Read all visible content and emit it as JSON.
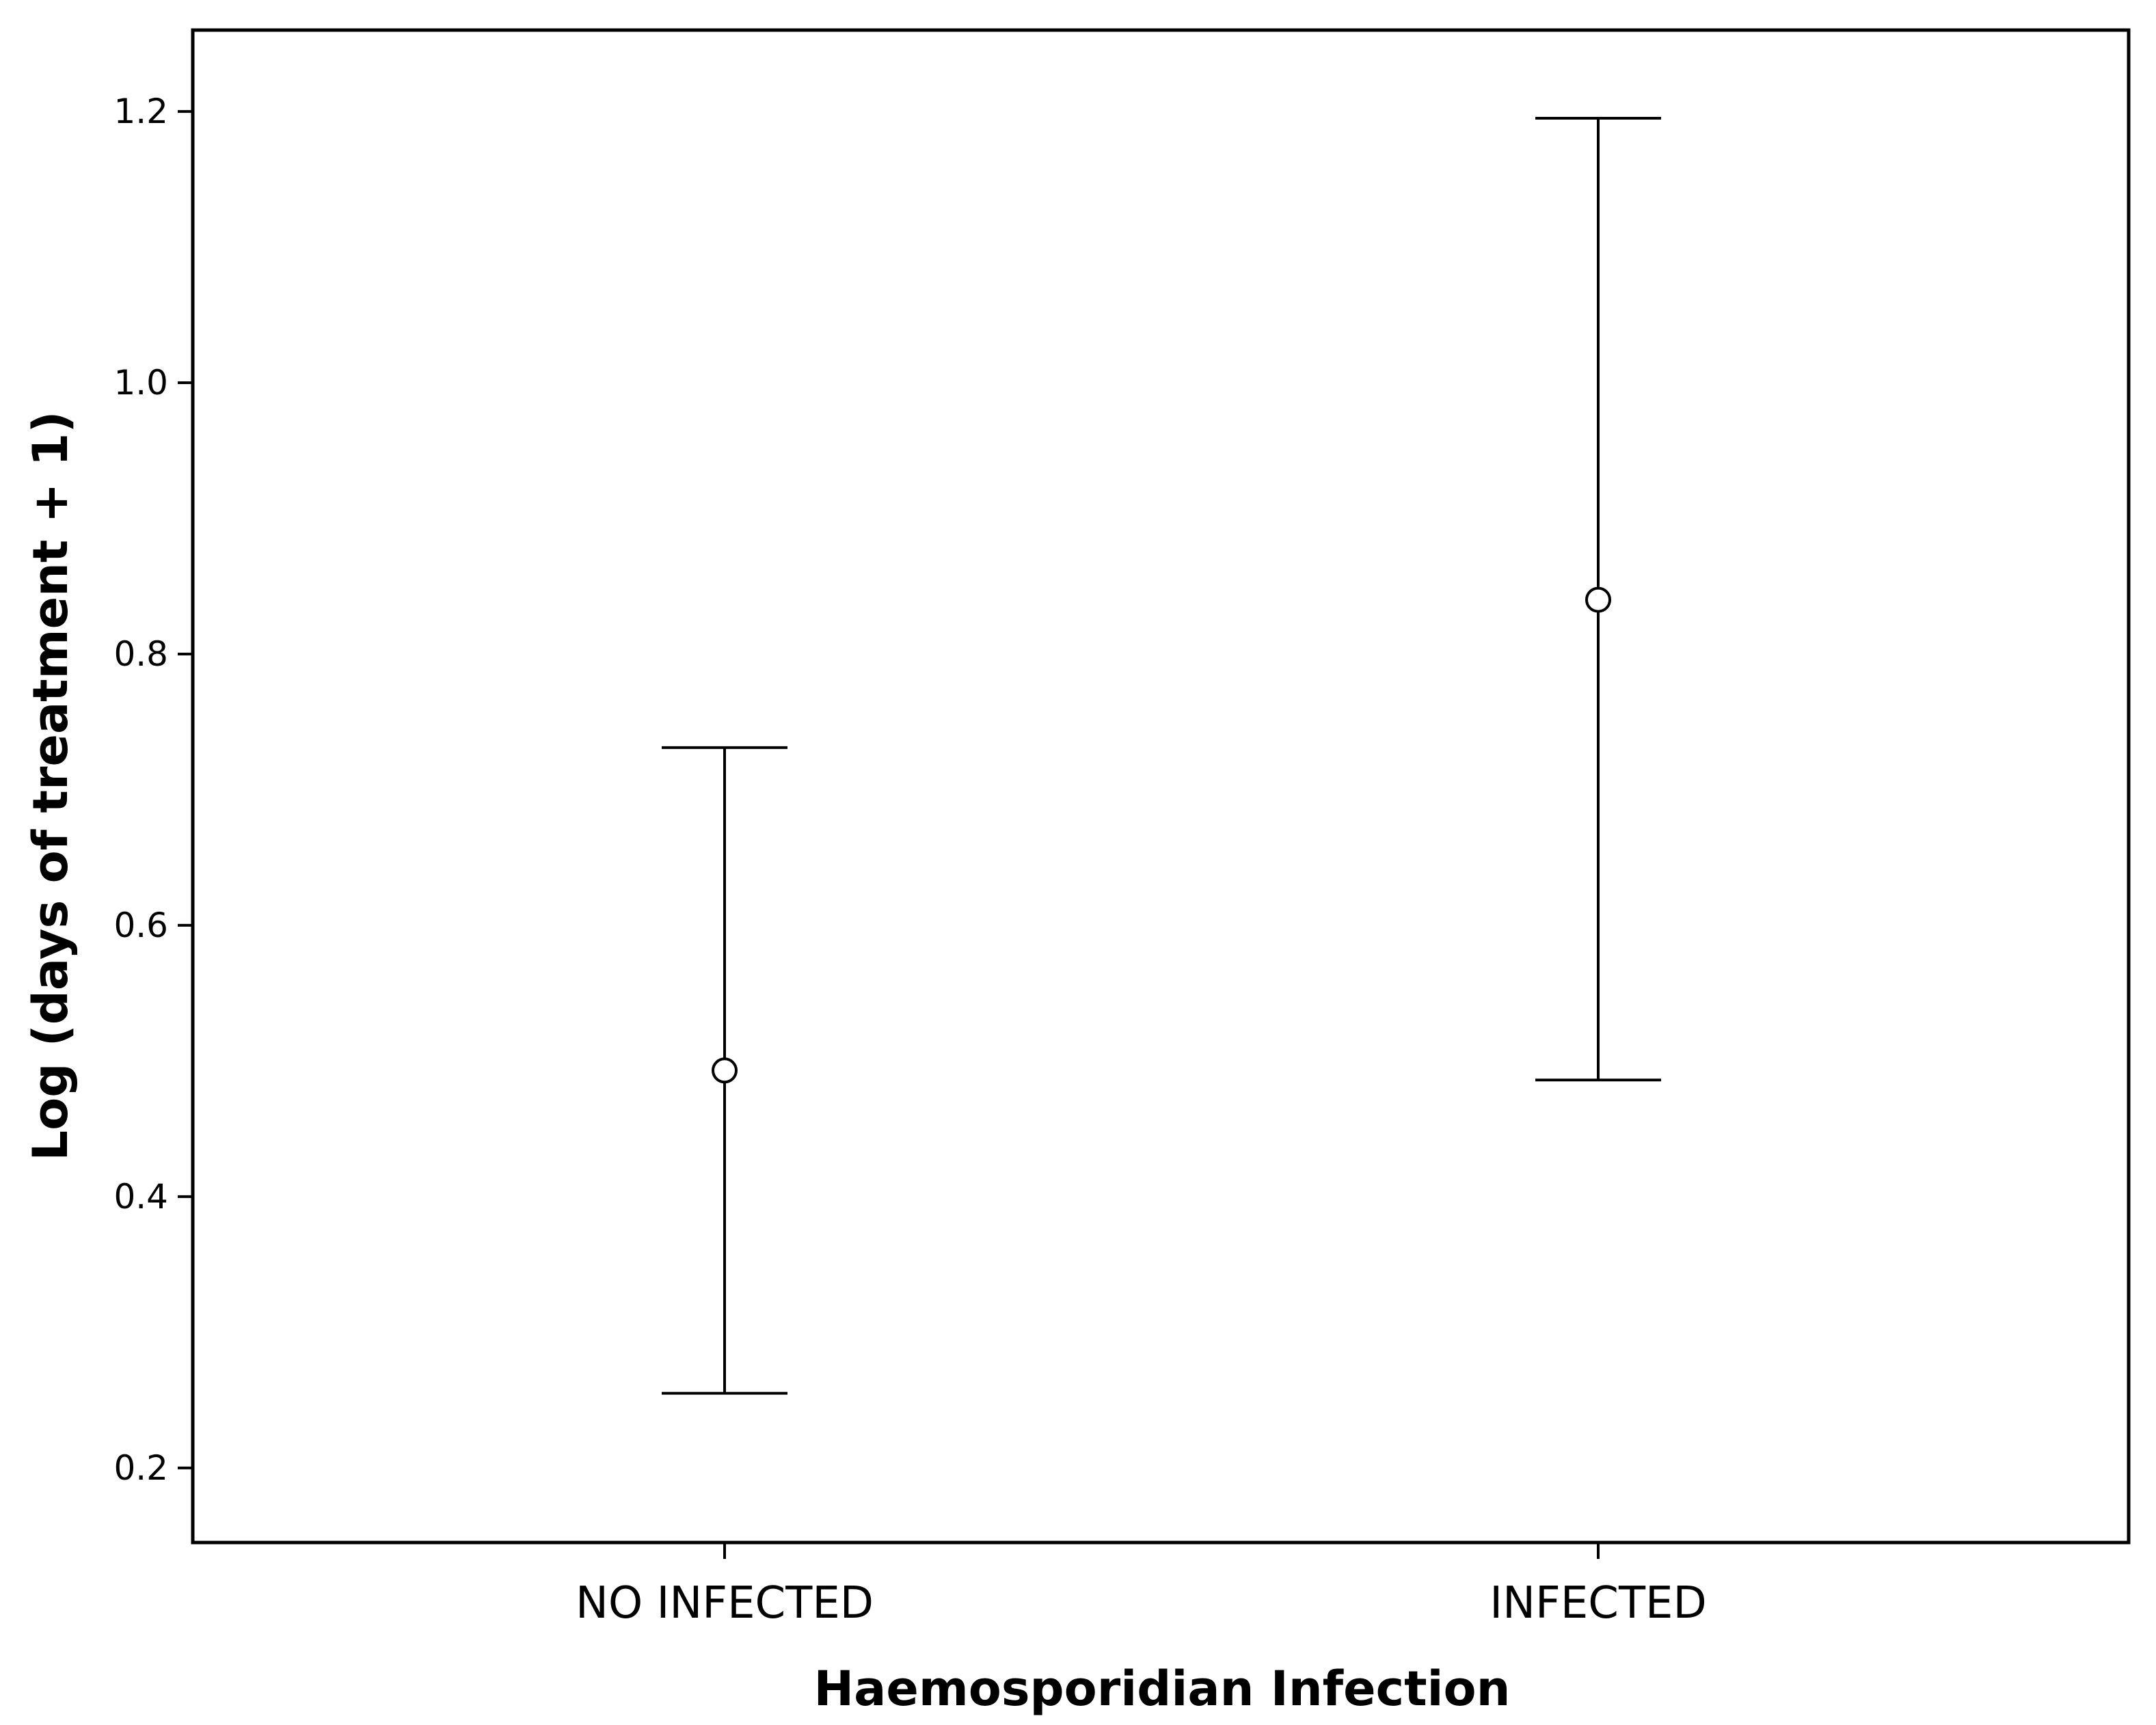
{
  "chart_data": {
    "type": "errorbar",
    "title": "",
    "xlabel": "Haemosporidian Infection",
    "ylabel": "Log (days of treatment + 1)",
    "categories": [
      "NO INFECTED",
      "INFECTED"
    ],
    "points": [
      {
        "category": "NO INFECTED",
        "mean": 0.493,
        "lower": 0.255,
        "upper": 0.731
      },
      {
        "category": "INFECTED",
        "mean": 0.84,
        "lower": 0.486,
        "upper": 1.195
      }
    ],
    "yticks": [
      "0.2",
      "0.4",
      "0.6",
      "0.8",
      "1.0",
      "1.2"
    ],
    "ylim": [
      0.145,
      1.26
    ],
    "grid": false,
    "legend": "none"
  }
}
